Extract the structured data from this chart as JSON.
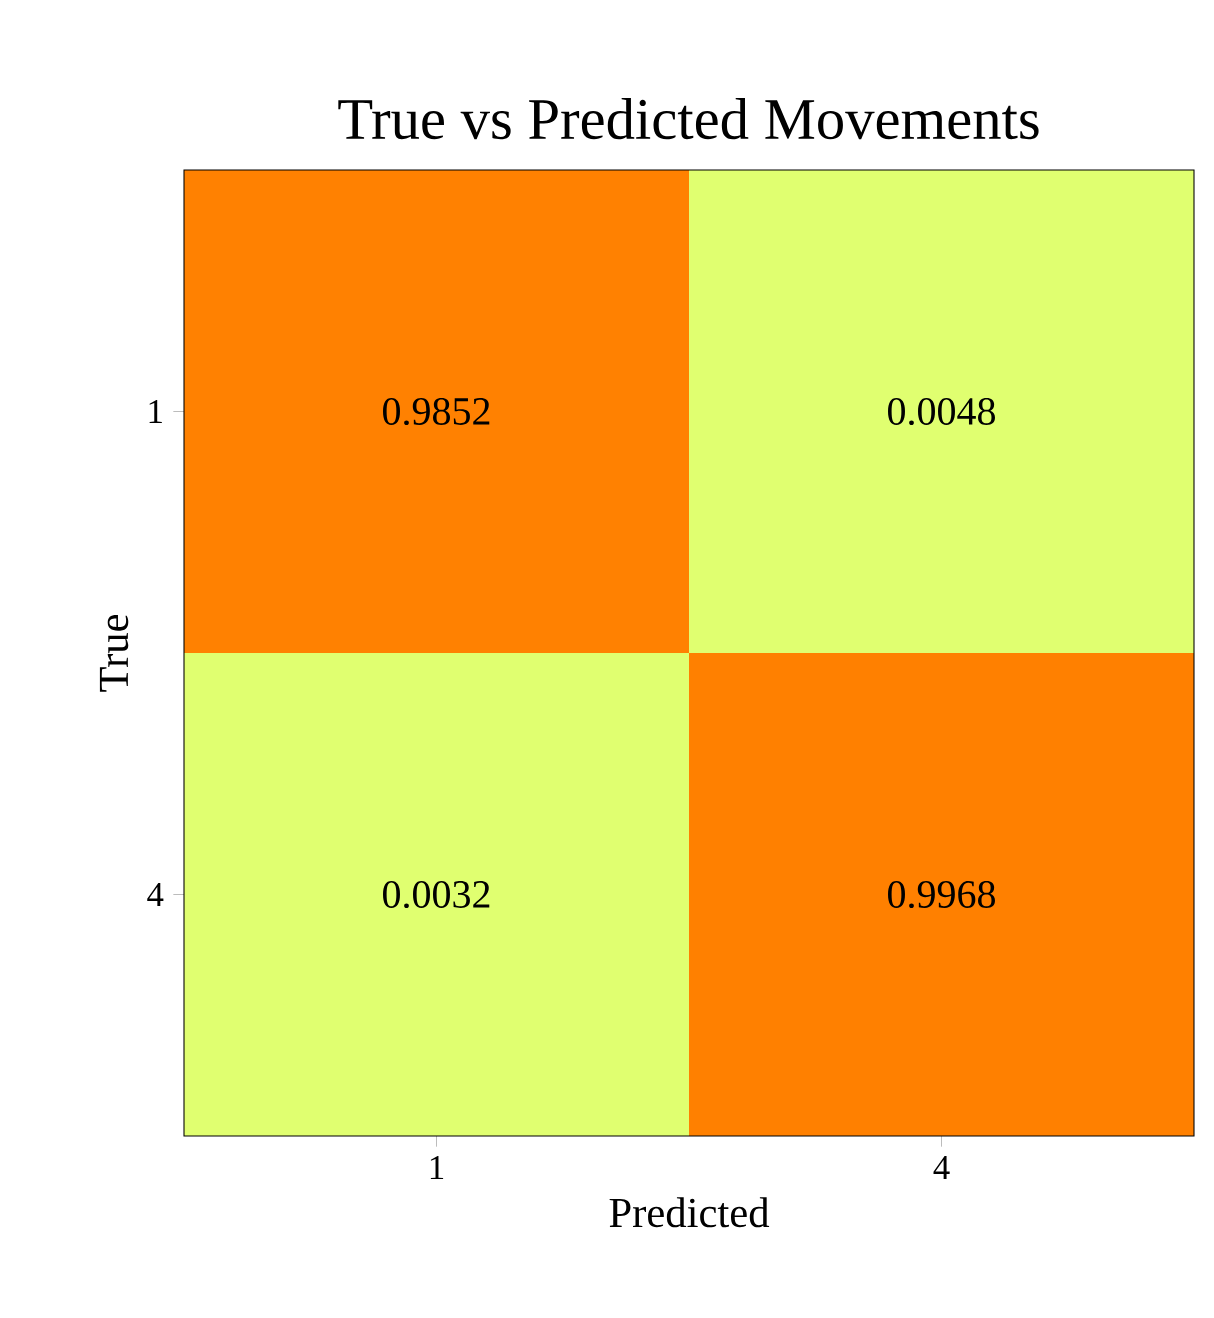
{
  "chart_data": {
    "type": "heatmap",
    "title": "True vs Predicted Movements",
    "xlabel": "Predicted",
    "ylabel": "True",
    "categories": [
      "1",
      "4"
    ],
    "y_categories": [
      "1",
      "4"
    ],
    "cells": [
      [
        0.9852,
        0.0048
      ],
      [
        0.0032,
        0.9968
      ]
    ],
    "data_labels": true
  }
}
